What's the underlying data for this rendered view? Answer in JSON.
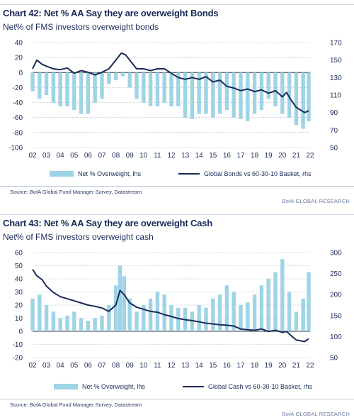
{
  "colors": {
    "bars": "#9fd3e6",
    "line": "#1b2a57",
    "grid": "#9aa3b5",
    "text": "#1b2a57"
  },
  "chart_data": [
    {
      "type": "bar",
      "title": "Chart 42: Net % AA Say they are overweight Bonds",
      "subtitle": "Net% of FMS investors overweight bonds",
      "x_ticks": [
        "02",
        "03",
        "04",
        "05",
        "06",
        "07",
        "08",
        "09",
        "10",
        "11",
        "12",
        "13",
        "14",
        "15",
        "16",
        "17",
        "18",
        "19",
        "20",
        "21",
        "22"
      ],
      "y_left_ticks": [
        "40",
        "20",
        "0",
        "-20",
        "-40",
        "-60",
        "-80",
        "-100"
      ],
      "y_right_ticks": [
        "170",
        "150",
        "130",
        "110",
        "90",
        "70",
        "50"
      ],
      "ylim_left": [
        -100,
        40
      ],
      "ylim_right": [
        50,
        170
      ],
      "grid": "dotted horizontal",
      "series": [
        {
          "name": "Net % Overweight, lhs",
          "kind": "bar",
          "x": [
            2002.0,
            2002.5,
            2003.0,
            2003.5,
            2004.0,
            2004.5,
            2005.0,
            2005.5,
            2006.0,
            2006.5,
            2007.0,
            2007.5,
            2008.0,
            2008.5,
            2009.0,
            2009.5,
            2010.0,
            2010.5,
            2011.0,
            2011.5,
            2012.0,
            2012.5,
            2013.0,
            2013.5,
            2014.0,
            2014.5,
            2015.0,
            2015.5,
            2016.0,
            2016.5,
            2017.0,
            2017.5,
            2018.0,
            2018.5,
            2019.0,
            2019.5,
            2020.0,
            2020.5,
            2021.0,
            2021.5,
            2021.9
          ],
          "values": [
            -25,
            -35,
            -30,
            -40,
            -45,
            -45,
            -50,
            -55,
            -55,
            -40,
            -35,
            -15,
            -10,
            -5,
            -20,
            -35,
            -40,
            -45,
            -45,
            -40,
            -45,
            -45,
            -60,
            -62,
            -55,
            -55,
            -60,
            -55,
            -50,
            -60,
            -62,
            -65,
            -55,
            -50,
            -35,
            -45,
            -55,
            -60,
            -70,
            -75,
            -65
          ]
        },
        {
          "name": "Global Bonds vs 60-30-10 Basket, rhs",
          "kind": "line",
          "x": [
            2002.0,
            2002.3,
            2002.7,
            2003.0,
            2003.5,
            2004.0,
            2004.5,
            2005.0,
            2005.5,
            2006.0,
            2006.5,
            2007.0,
            2007.5,
            2008.0,
            2008.4,
            2008.7,
            2009.0,
            2009.5,
            2010.0,
            2010.5,
            2011.0,
            2011.5,
            2012.0,
            2012.5,
            2013.0,
            2013.5,
            2014.0,
            2014.5,
            2015.0,
            2015.5,
            2016.0,
            2016.5,
            2017.0,
            2017.5,
            2018.0,
            2018.5,
            2019.0,
            2019.5,
            2020.0,
            2020.3,
            2020.6,
            2021.0,
            2021.3,
            2021.6,
            2021.9
          ],
          "values": [
            140,
            150,
            145,
            143,
            140,
            139,
            141,
            135,
            138,
            136,
            133,
            136,
            140,
            150,
            158,
            156,
            150,
            140,
            140,
            138,
            140,
            140,
            135,
            130,
            128,
            130,
            128,
            131,
            125,
            127,
            120,
            118,
            115,
            117,
            114,
            116,
            112,
            115,
            108,
            113,
            105,
            96,
            93,
            90,
            92
          ]
        }
      ],
      "legend": [
        "Net % Overweight, lhs",
        "Global Bonds vs 60-30-10 Basket, rhs"
      ],
      "legend_position": "bottom",
      "source": "Source:  BofA Global Fund Manager Survey, Datastream",
      "brand": "BofA GLOBAL RESEARCH"
    },
    {
      "type": "bar",
      "title": "Chart 43: Net % AA Say they are overweight Cash",
      "subtitle": "Net% of FMS investors overweight cash",
      "x_ticks": [
        "02",
        "03",
        "04",
        "05",
        "06",
        "07",
        "08",
        "09",
        "10",
        "11",
        "12",
        "13",
        "14",
        "15",
        "16",
        "17",
        "18",
        "19",
        "20",
        "21",
        "22"
      ],
      "y_left_ticks": [
        "60",
        "50",
        "40",
        "30",
        "20",
        "10",
        "0",
        "-10",
        "-20"
      ],
      "y_right_ticks": [
        "300",
        "250",
        "200",
        "150",
        "100",
        "50"
      ],
      "ylim_left": [
        -20,
        60
      ],
      "ylim_right": [
        50,
        300
      ],
      "grid": "dotted horizontal",
      "series": [
        {
          "name": "Net % Overweight, lhs",
          "kind": "bar",
          "x": [
            2002.0,
            2002.5,
            2003.0,
            2003.5,
            2004.0,
            2004.5,
            2005.0,
            2005.5,
            2006.0,
            2006.5,
            2007.0,
            2007.5,
            2008.0,
            2008.3,
            2008.6,
            2009.0,
            2009.5,
            2010.0,
            2010.5,
            2011.0,
            2011.5,
            2012.0,
            2012.5,
            2013.0,
            2013.5,
            2014.0,
            2014.5,
            2015.0,
            2015.5,
            2016.0,
            2016.5,
            2017.0,
            2017.5,
            2018.0,
            2018.5,
            2019.0,
            2019.5,
            2020.0,
            2020.5,
            2021.0,
            2021.5,
            2021.9
          ],
          "values": [
            25,
            28,
            20,
            15,
            10,
            12,
            15,
            10,
            8,
            10,
            12,
            20,
            35,
            50,
            42,
            25,
            15,
            20,
            25,
            30,
            28,
            20,
            18,
            18,
            15,
            20,
            18,
            25,
            28,
            35,
            30,
            20,
            22,
            28,
            35,
            40,
            45,
            55,
            30,
            15,
            25,
            45
          ]
        },
        {
          "name": "Global Cash vs 60-30-10 Basket, rhs",
          "kind": "line",
          "x": [
            2002.0,
            2002.3,
            2002.7,
            2003.0,
            2003.5,
            2004.0,
            2004.5,
            2005.0,
            2005.5,
            2006.0,
            2006.5,
            2007.0,
            2007.5,
            2008.0,
            2008.3,
            2008.6,
            2009.0,
            2009.5,
            2010.0,
            2010.5,
            2011.0,
            2011.5,
            2012.0,
            2012.5,
            2013.0,
            2013.5,
            2014.0,
            2014.5,
            2015.0,
            2015.5,
            2016.0,
            2016.5,
            2017.0,
            2017.5,
            2018.0,
            2018.5,
            2019.0,
            2019.5,
            2020.0,
            2020.3,
            2020.6,
            2021.0,
            2021.3,
            2021.6,
            2021.9
          ],
          "values": [
            260,
            245,
            235,
            220,
            205,
            195,
            190,
            185,
            180,
            175,
            172,
            168,
            160,
            175,
            210,
            200,
            180,
            170,
            165,
            160,
            158,
            152,
            148,
            143,
            140,
            138,
            135,
            132,
            130,
            128,
            127,
            125,
            118,
            116,
            115,
            118,
            112,
            115,
            110,
            112,
            103,
            92,
            90,
            88,
            95
          ]
        }
      ],
      "legend": [
        "Net % Overweight, lhs",
        "Global Cash vs 60-30-10 Basket, rhs"
      ],
      "legend_position": "bottom",
      "source": "Source:  BofA Global Fund Manager Survey, Datastream",
      "brand": "BofA GLOBAL RESEARCH"
    }
  ]
}
